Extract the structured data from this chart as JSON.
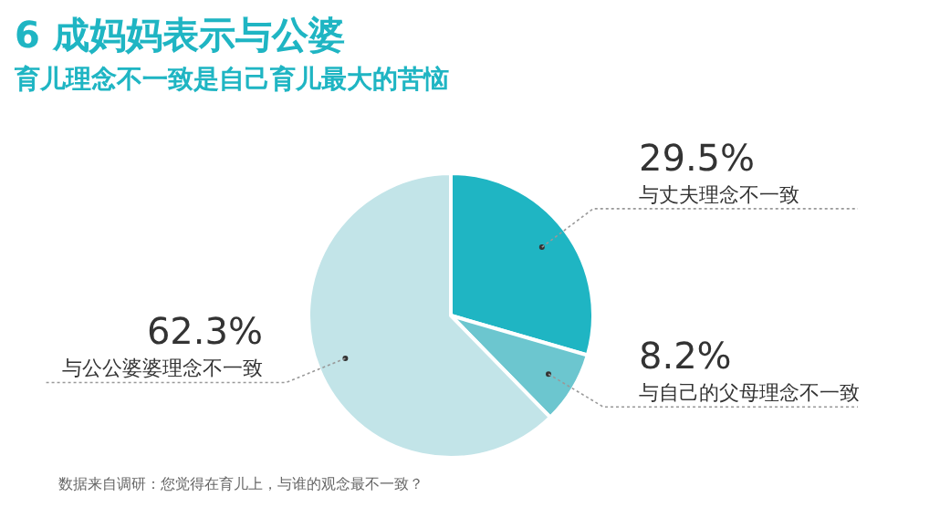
{
  "chart_data": {
    "type": "pie",
    "title": "6 成妈妈表示与公婆",
    "subtitle": "育儿理念不一致是自己育儿最大的苦恼",
    "categories": [
      "与丈夫理念不一致",
      "与自己的父母理念不一致",
      "与公公婆婆理念不一致"
    ],
    "values": [
      29.5,
      8.2,
      62.3
    ],
    "value_labels": [
      "29.5%",
      "8.2%",
      "62.3%"
    ],
    "colors": [
      "#1fb5c3",
      "#6cc6cf",
      "#c2e4e8"
    ],
    "annotations": [
      "数据来自调研：您觉得在育儿上，与谁的观念最不一致？"
    ]
  }
}
